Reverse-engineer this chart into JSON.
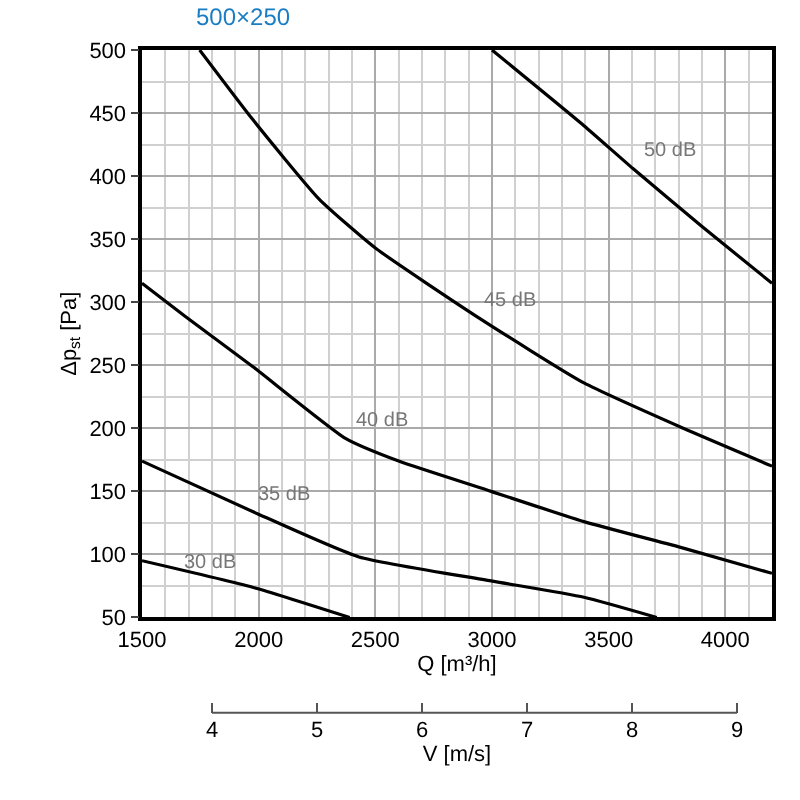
{
  "chart_data": {
    "type": "line",
    "title": "500×250",
    "xlabel": "Q [m³/h]",
    "ylabel": "Δp$_{st}$ [Pa]",
    "x2label": "V [m/s]",
    "xlim": [
      1500,
      4200
    ],
    "xticks": [
      1500,
      2000,
      2500,
      3000,
      3500,
      4000
    ],
    "ylim": [
      50,
      500
    ],
    "yticks": [
      50,
      100,
      150,
      200,
      250,
      300,
      350,
      400,
      450,
      500
    ],
    "x2lim": [
      3.333,
      9.333
    ],
    "x2ticks": [
      4,
      5,
      6,
      7,
      8,
      9
    ],
    "grid": true,
    "legend": false,
    "marker": "none",
    "line_style": "solid",
    "series": [
      {
        "name": "50 dB",
        "color": "#000000",
        "x": [
          3000,
          3394,
          3604,
          3900,
          4200
        ],
        "values": [
          500,
          440,
          406,
          360,
          315
        ]
      },
      {
        "name": "45 dB",
        "color": "#000000",
        "x": [
          1747,
          1974,
          2258,
          2500,
          2940,
          3394,
          3820,
          4200
        ],
        "values": [
          500,
          445,
          382,
          343,
          288,
          236,
          200,
          170
        ]
      },
      {
        "name": "40 dB",
        "color": "#000000",
        "x": [
          1500,
          1690,
          1974,
          2372,
          2600,
          2996,
          3394,
          3820,
          4200
        ],
        "values": [
          315,
          288,
          249,
          192,
          174,
          150,
          126,
          105,
          85
        ]
      },
      {
        "name": "35 dB",
        "color": "#000000",
        "x": [
          1500,
          1974,
          2430,
          2996,
          3394,
          3706
        ],
        "values": [
          174,
          134,
          98,
          79,
          66,
          50
        ]
      },
      {
        "name": "30 dB",
        "color": "#000000",
        "x": [
          1500,
          1974,
          2390
        ],
        "values": [
          95,
          74,
          50
        ]
      }
    ]
  }
}
